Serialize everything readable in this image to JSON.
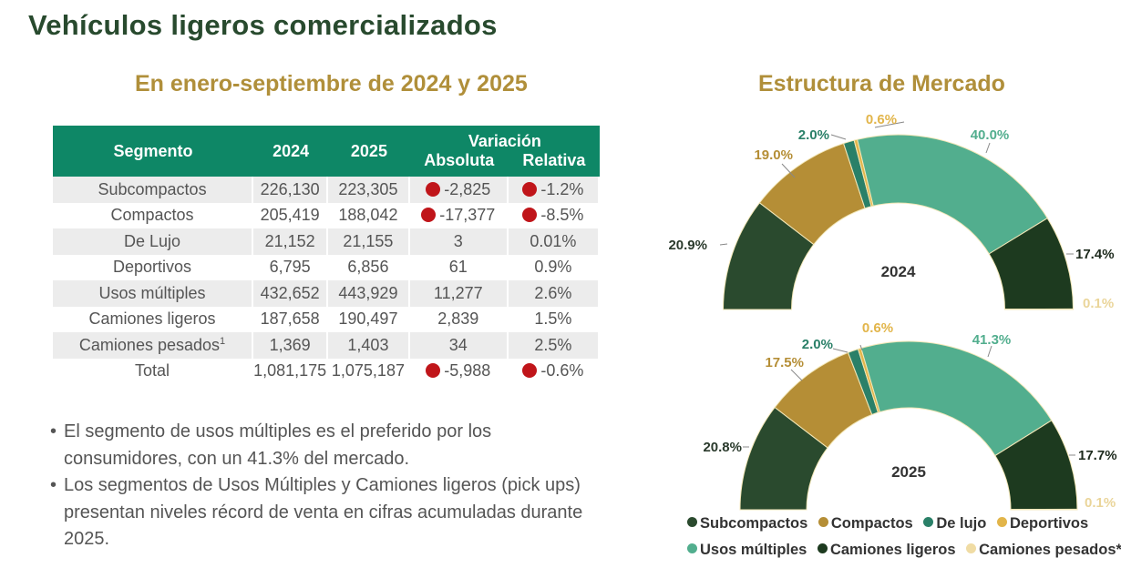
{
  "header": {
    "title": "Vehículos ligeros comercializados",
    "subtitle": "En enero-septiembre de 2024 y 2025",
    "right_title": "Estructura de Mercado"
  },
  "table": {
    "columns": {
      "segment": "Segmento",
      "y2024": "2024",
      "y2025": "2025",
      "variation": "Variación",
      "absolute": "Absoluta",
      "relative": "Relativa"
    },
    "rows": [
      {
        "segment": "Subcompactos",
        "sup": "",
        "y2024": "226,130",
        "y2025": "223,305",
        "absolute": "-2,825",
        "relative": "-1.2%",
        "negative": true
      },
      {
        "segment": "Compactos",
        "sup": "",
        "y2024": "205,419",
        "y2025": "188,042",
        "absolute": "-17,377",
        "relative": "-8.5%",
        "negative": true
      },
      {
        "segment": "De Lujo",
        "sup": "",
        "y2024": "21,152",
        "y2025": "21,155",
        "absolute": "3",
        "relative": "0.01%",
        "negative": false
      },
      {
        "segment": "Deportivos",
        "sup": "",
        "y2024": "6,795",
        "y2025": "6,856",
        "absolute": "61",
        "relative": "0.9%",
        "negative": false
      },
      {
        "segment": "Usos múltiples",
        "sup": "",
        "y2024": "432,652",
        "y2025": "443,929",
        "absolute": "11,277",
        "relative": "2.6%",
        "negative": false
      },
      {
        "segment": "Camiones ligeros",
        "sup": "",
        "y2024": "187,658",
        "y2025": "190,497",
        "absolute": "2,839",
        "relative": "1.5%",
        "negative": false
      },
      {
        "segment": "Camiones pesados",
        "sup": "1",
        "y2024": "1,369",
        "y2025": "1,403",
        "absolute": "34",
        "relative": "2.5%",
        "negative": false
      },
      {
        "segment": "Total",
        "sup": "",
        "y2024": "1,081,175",
        "y2025": "1,075,187",
        "absolute": "-5,988",
        "relative": "-0.6%",
        "negative": true
      }
    ],
    "negative_indicator_color": "#c0151a",
    "header_color": "#0e8766"
  },
  "bullets": [
    "El segmento de usos múltiples es el preferido por los consumidores, con un 41.3% del mercado.",
    "Los segmentos de Usos Múltiples y Camiones ligeros (pick ups) presentan niveles récord de venta en cifras acumuladas durante 2025."
  ],
  "chart_data": [
    {
      "type": "pie",
      "subtype": "half-donut",
      "title": "Estructura de Mercado",
      "center_label": "2024",
      "categories": [
        "Subcompactos",
        "Compactos",
        "De lujo",
        "Deportivos",
        "Usos múltiples",
        "Camiones ligeros",
        "Camiones pesados*"
      ],
      "values": [
        20.9,
        19.0,
        2.0,
        0.6,
        40.0,
        17.4,
        0.1
      ],
      "labels": [
        "20.9%",
        "19.0%",
        "2.0%",
        "0.6%",
        "40.0%",
        "17.4%",
        "0.1%"
      ],
      "unit": "%"
    },
    {
      "type": "pie",
      "subtype": "half-donut",
      "title": "Estructura de Mercado",
      "center_label": "2025",
      "categories": [
        "Subcompactos",
        "Compactos",
        "De lujo",
        "Deportivos",
        "Usos múltiples",
        "Camiones ligeros",
        "Camiones pesados*"
      ],
      "values": [
        20.8,
        17.5,
        2.0,
        0.6,
        41.3,
        17.7,
        0.1
      ],
      "labels": [
        "20.8%",
        "17.5%",
        "2.0%",
        "0.6%",
        "41.3%",
        "17.7%",
        "0.1%"
      ],
      "unit": "%"
    }
  ],
  "legend": {
    "placement": "bottom",
    "items": [
      {
        "label": "Subcompactos",
        "color": "#2a4a2e"
      },
      {
        "label": "Compactos",
        "color": "#b58e36"
      },
      {
        "label": "De lujo",
        "color": "#2a8068"
      },
      {
        "label": "Deportivos",
        "color": "#e2b54a"
      },
      {
        "label": "Usos múltiples",
        "color": "#52ae8e"
      },
      {
        "label": "Camiones ligeros",
        "color": "#1d3a1f"
      },
      {
        "label": "Camiones pesados*",
        "color": "#f0dca4"
      }
    ]
  },
  "label_colors": [
    "#2a3a2c",
    "#b58e36",
    "#2a8068",
    "#e2b54a",
    "#52ae8e",
    "#1d2a1d",
    "#ead59a"
  ]
}
